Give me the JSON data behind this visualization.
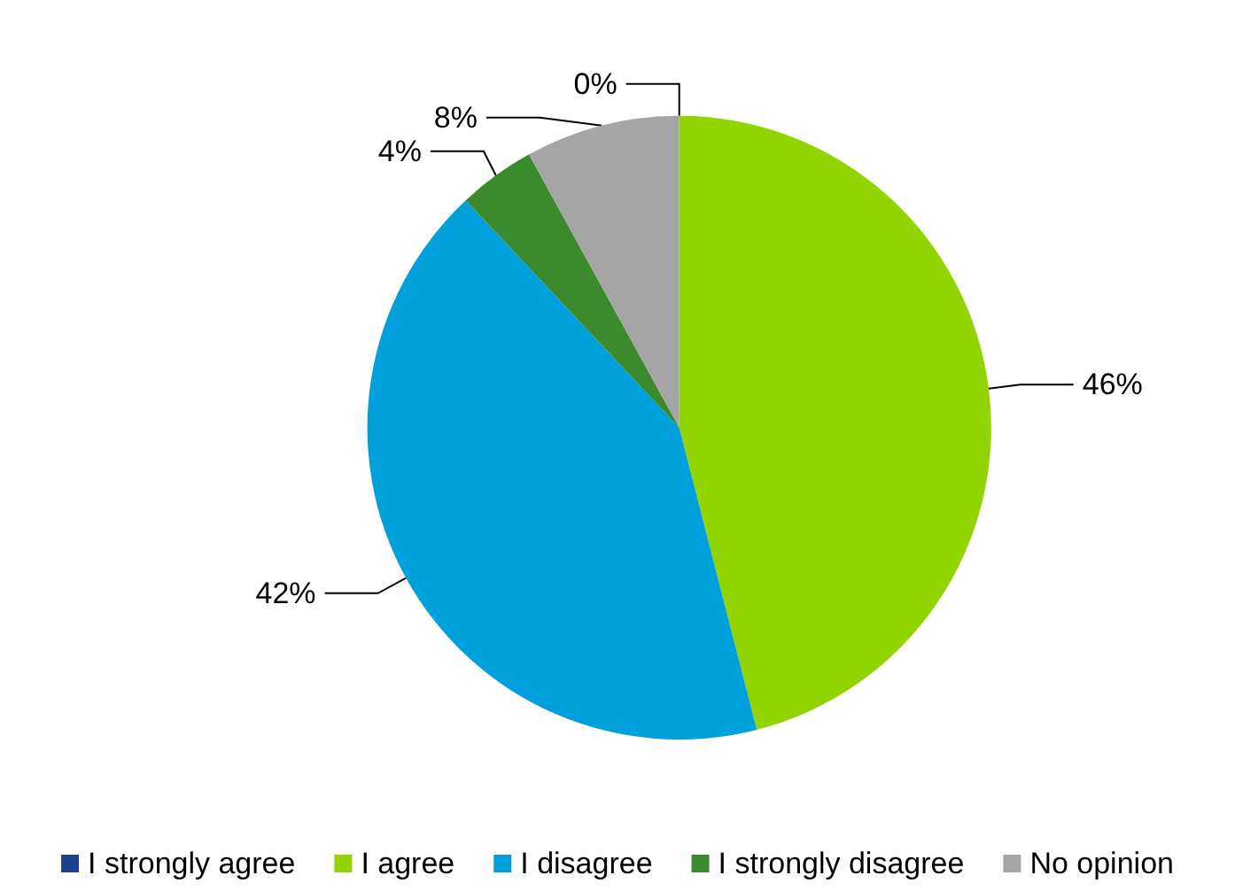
{
  "chart_data": {
    "type": "pie",
    "categories": [
      "I strongly agree",
      "I agree",
      "I disagree",
      "I strongly disagree",
      "No opinion"
    ],
    "values": [
      0,
      46,
      42,
      4,
      8
    ],
    "colors": [
      "#1f3f8f",
      "#92d400",
      "#00a0dc",
      "#3c8a2e",
      "#a5a5a5"
    ],
    "value_labels": [
      "0%",
      "46%",
      "42%",
      "4%",
      "8%"
    ],
    "legend": "bottom"
  }
}
